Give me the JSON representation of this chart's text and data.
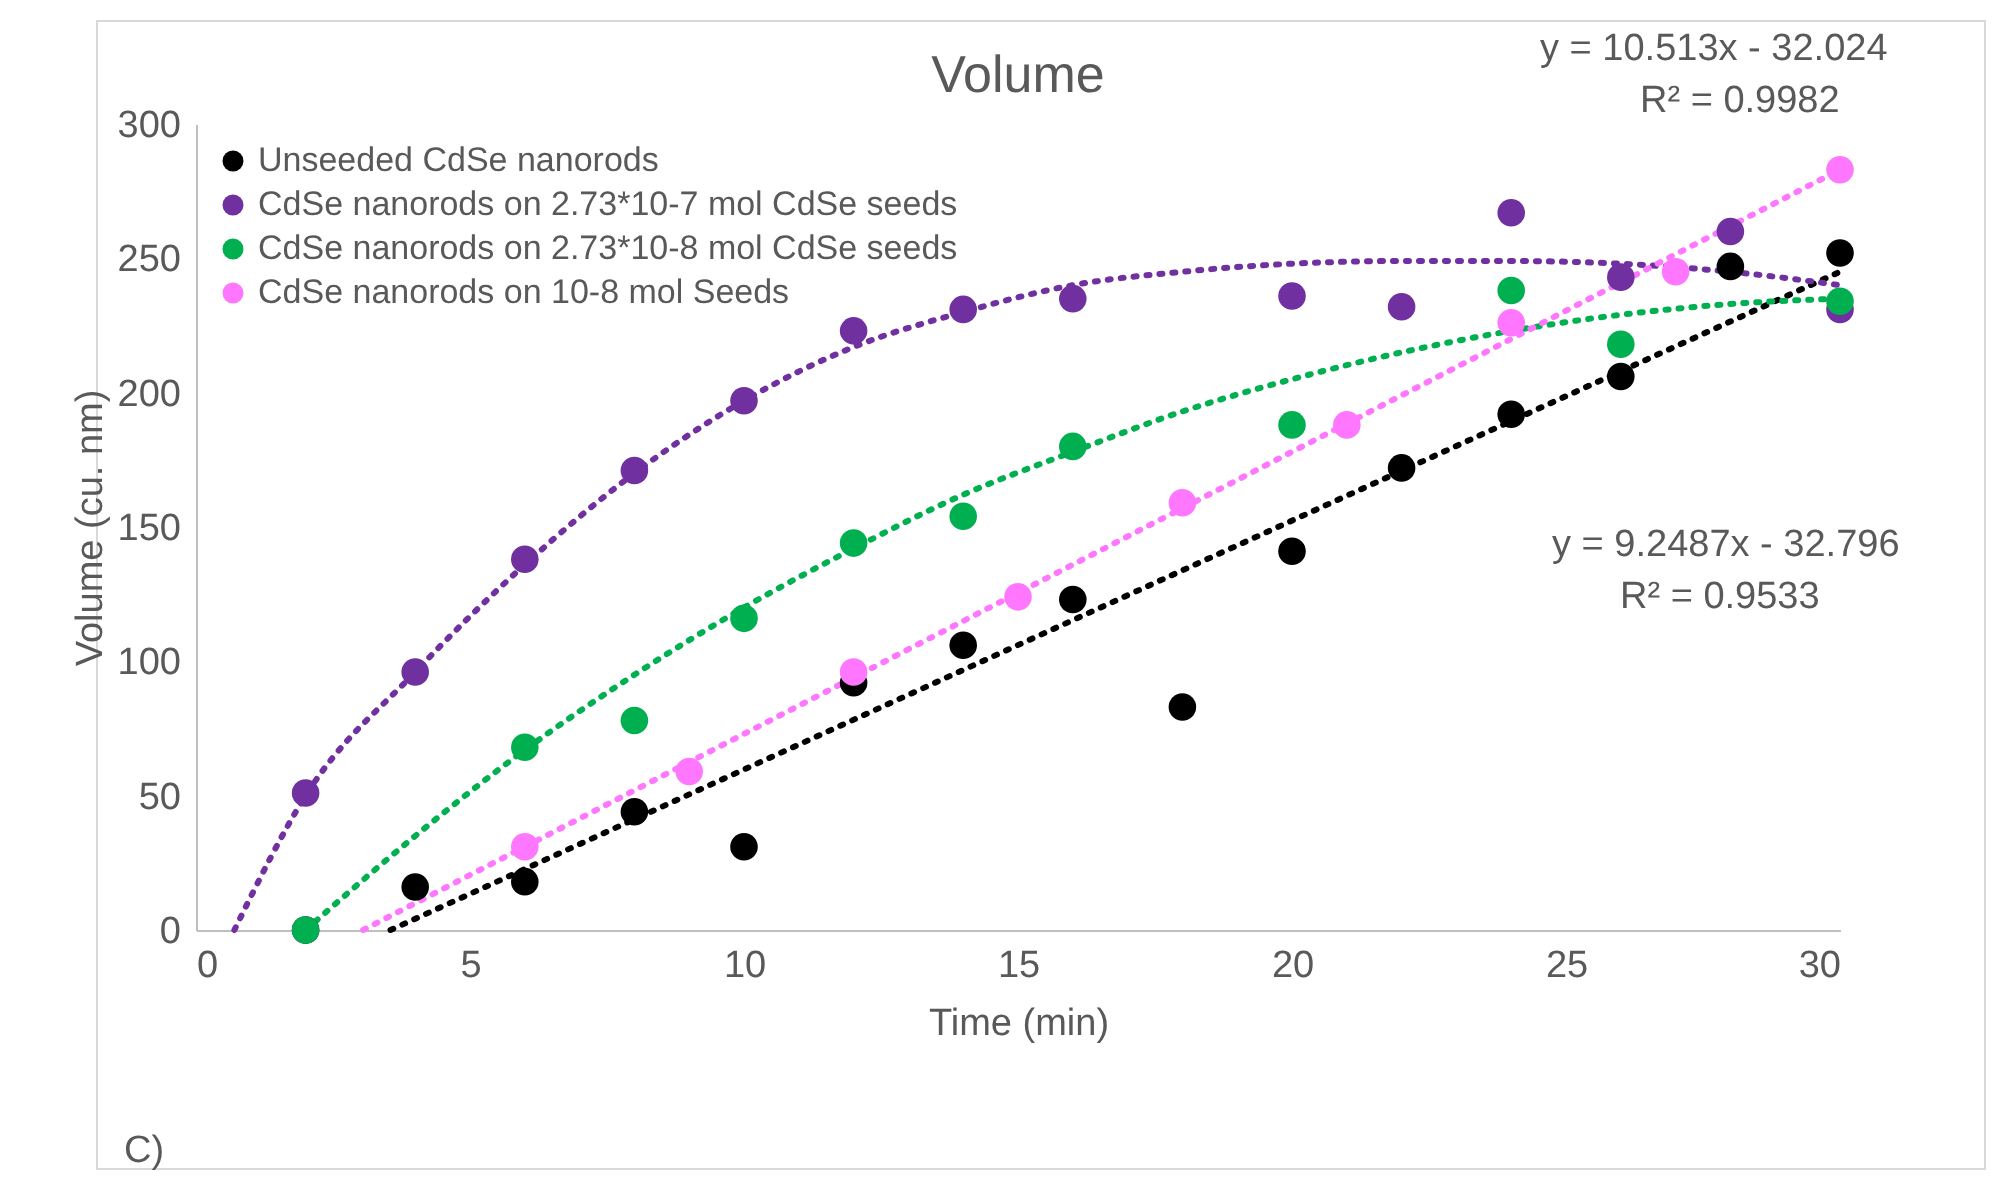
{
  "chart_data": {
    "type": "scatter",
    "title": "Volume",
    "xlabel": "Time (min)",
    "ylabel": "Volume (cu. nm)",
    "xlim": [
      0,
      30
    ],
    "xticks": [
      0,
      5,
      10,
      15,
      20,
      25,
      30
    ],
    "ylim": [
      0,
      300
    ],
    "yticks": [
      0,
      50,
      100,
      150,
      200,
      250,
      300
    ],
    "grid": false,
    "legend": "top left",
    "marker": "circle",
    "annotations": [
      "y = 10.513x - 32.024",
      "R² = 0.9982",
      "y = 9.2487x - 32.796",
      "R² = 0.9533",
      "C)"
    ],
    "series": [
      {
        "name": "Unseeded CdSe nanorods",
        "color": "#000000",
        "x": [
          2,
          4,
          6,
          8,
          10,
          12,
          14,
          16,
          18,
          20,
          22,
          24,
          26,
          28,
          30
        ],
        "values": [
          0,
          16,
          18,
          44,
          31,
          92,
          106,
          123,
          83,
          141,
          172,
          192,
          206,
          247,
          252
        ]
      },
      {
        "name": "CdSe nanorods on 2.73*10-7 mol CdSe seeds",
        "color": "#7030a0",
        "x": [
          2,
          4,
          6,
          8,
          10,
          12,
          14,
          16,
          20,
          22,
          24,
          26,
          28,
          30
        ],
        "values": [
          51,
          96,
          138,
          171,
          197,
          223,
          231,
          235,
          236,
          232,
          267,
          243,
          260,
          231
        ]
      },
      {
        "name": "CdSe nanorods on 2.73*10-8 mol CdSe seeds",
        "color": "#00b050",
        "x": [
          2,
          6,
          8,
          10,
          12,
          14,
          16,
          20,
          24,
          26,
          30
        ],
        "values": [
          0,
          68,
          78,
          116,
          144,
          154,
          180,
          188,
          238,
          218,
          234
        ]
      },
      {
        "name": "CdSe nanorods on 10-8 mol Seeds",
        "color": "#ff77ff",
        "x": [
          6,
          9,
          12,
          15,
          18,
          21,
          24,
          27,
          30
        ],
        "values": [
          31,
          59,
          96,
          124,
          159,
          188,
          226,
          245,
          283
        ]
      },
      {
        "type": "line",
        "line_style": "dotted",
        "marker": "none",
        "color": "#000000",
        "x": [
          3.55,
          30
        ],
        "values": [
          0,
          245
        ]
      },
      {
        "type": "line",
        "line_style": "dotted",
        "marker": "none",
        "color": "#7030a0",
        "x": [
          0.7,
          2,
          4,
          6,
          8,
          10,
          12,
          14,
          16,
          18,
          20,
          22,
          24,
          26,
          28,
          30
        ],
        "values": [
          0,
          50,
          96,
          136,
          170,
          197,
          217,
          230,
          240,
          245,
          248,
          249,
          249,
          248,
          245,
          240
        ]
      },
      {
        "type": "line",
        "line_style": "dotted",
        "marker": "none",
        "color": "#00b050",
        "x": [
          2,
          4,
          6,
          8,
          10,
          12,
          14,
          16,
          18,
          20,
          22,
          24,
          26,
          28,
          30
        ],
        "values": [
          0,
          35,
          67,
          95,
          120,
          142,
          162,
          178,
          193,
          205,
          215,
          223,
          229,
          233,
          235
        ]
      },
      {
        "type": "line",
        "line_style": "dotted",
        "marker": "none",
        "color": "#ff77ff",
        "x": [
          3.05,
          30
        ],
        "values": [
          0,
          283
        ]
      }
    ]
  }
}
